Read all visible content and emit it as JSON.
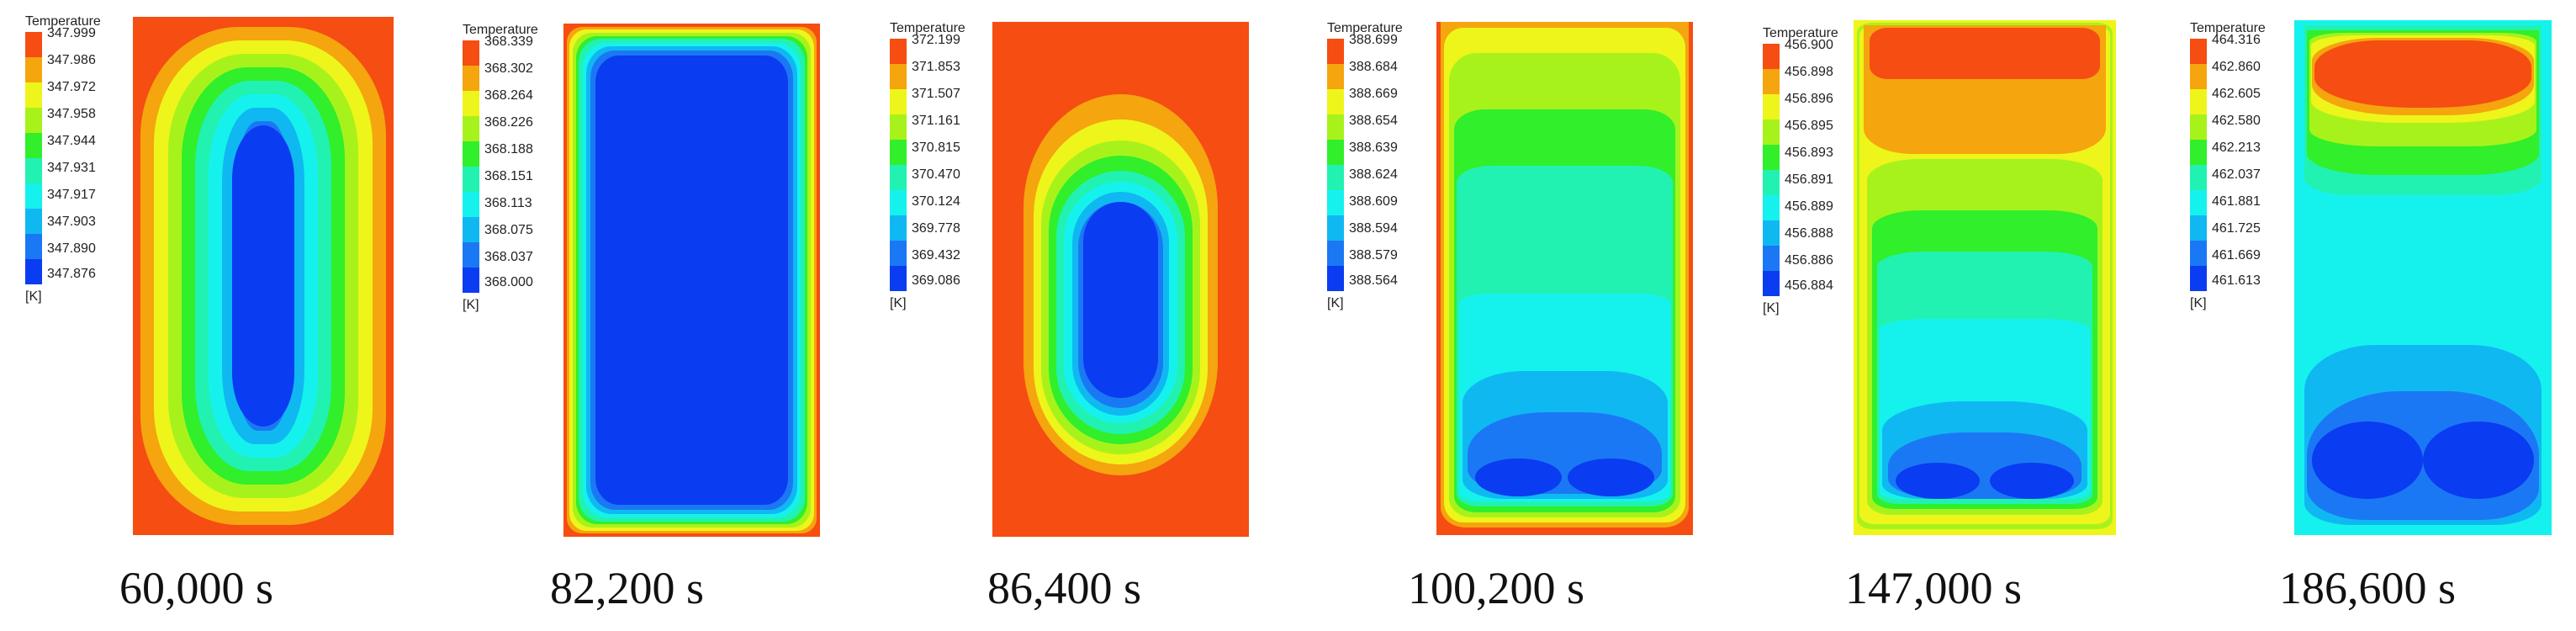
{
  "colors": {
    "c0": "#0a3cf2",
    "c1": "#1b78f4",
    "c2": "#10b8f2",
    "c3": "#15f2ee",
    "c4": "#21f2b2",
    "c5": "#31ef2a",
    "c6": "#a8f21c",
    "c7": "#eef51a",
    "c8": "#f5a50e",
    "c9": "#f54d12"
  },
  "panels": [
    {
      "legend": {
        "title": "Temperature",
        "unit": "[K]",
        "values": [
          "347.999",
          "347.986",
          "347.972",
          "347.958",
          "347.944",
          "347.931",
          "347.917",
          "347.903",
          "347.890",
          "347.876"
        ]
      },
      "caption": "60,000 s"
    },
    {
      "legend": {
        "title": "Temperature",
        "unit": "[K]",
        "values": [
          "368.339",
          "368.302",
          "368.264",
          "368.226",
          "368.188",
          "368.151",
          "368.113",
          "368.075",
          "368.037",
          "368.000"
        ]
      },
      "caption": "82,200 s"
    },
    {
      "legend": {
        "title": "Temperature",
        "unit": "[K]",
        "values": [
          "372.199",
          "371.853",
          "371.507",
          "371.161",
          "370.815",
          "370.470",
          "370.124",
          "369.778",
          "369.432",
          "369.086"
        ]
      },
      "caption": "86,400 s"
    },
    {
      "legend": {
        "title": "Temperature",
        "unit": "[K]",
        "values": [
          "388.699",
          "388.684",
          "388.669",
          "388.654",
          "388.639",
          "388.624",
          "388.609",
          "388.594",
          "388.579",
          "388.564"
        ]
      },
      "caption": "100,200 s"
    },
    {
      "legend": {
        "title": "Temperature",
        "unit": "[K]",
        "values": [
          "456.900",
          "456.898",
          "456.896",
          "456.895",
          "456.893",
          "456.891",
          "456.889",
          "456.888",
          "456.886",
          "456.884"
        ]
      },
      "caption": "147,000 s"
    },
    {
      "legend": {
        "title": "Temperature",
        "unit": "[K]",
        "values": [
          "464.316",
          "462.860",
          "462.605",
          "462.580",
          "462.213",
          "462.037",
          "461.881",
          "461.725",
          "461.669",
          "461.613"
        ]
      },
      "caption": "186,600 s"
    }
  ]
}
